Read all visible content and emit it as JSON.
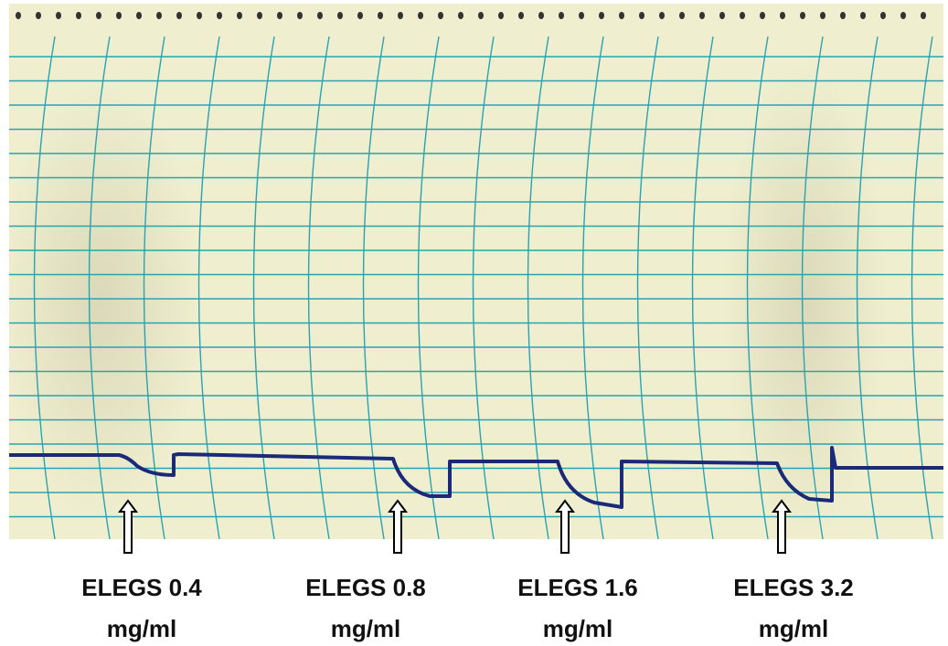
{
  "annotations": [
    {
      "line1": "ELEGS 0.4",
      "line2": "mg/ml"
    },
    {
      "line1": "ELEGS 0.8",
      "line2": "mg/ml"
    },
    {
      "line1": "ELEGS 1.6",
      "line2": "mg/ml"
    },
    {
      "line1": "ELEGS 3.2",
      "line2": "mg/ml"
    }
  ]
}
